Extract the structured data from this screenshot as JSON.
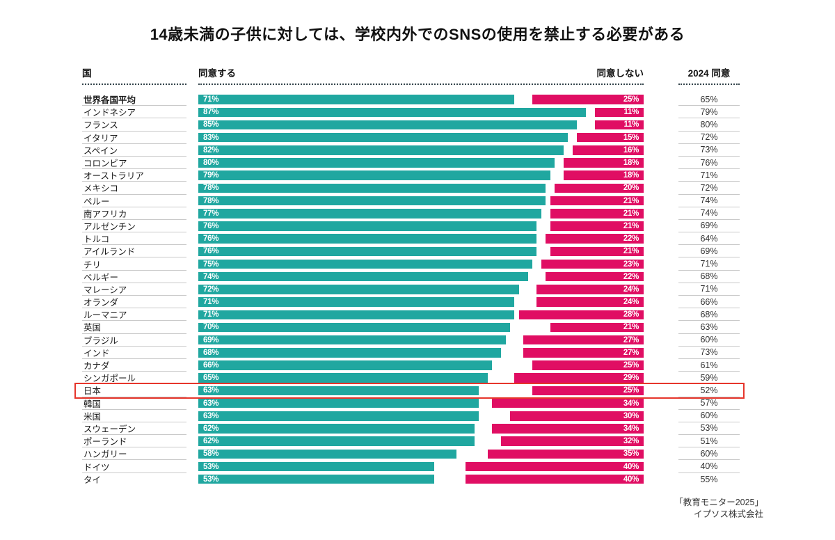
{
  "title": "14歳未満の子供に対しては、学校内外でのSNSの使用を禁止する必要がある",
  "header": {
    "country": "国",
    "agree": "同意する",
    "disagree": "同意しない",
    "agree_2024": "2024 同意"
  },
  "source": {
    "line1": "「教育モニター2025」",
    "line2": "イプソス株式会社"
  },
  "colors": {
    "agree_bar": "#20a7a0",
    "disagree_bar": "#e00e63",
    "highlight_box": "#e6352b",
    "row_line": "#c9c9c9",
    "header_dotted": "#34444b"
  },
  "chart_data": {
    "type": "bar",
    "subtype": "horizontal-diverging-with-table-column",
    "title": "14歳未満の子供に対しては、学校内外でのSNSの使用を禁止する必要がある",
    "value_format": "percent",
    "axis_range": [
      0,
      100
    ],
    "grid": false,
    "legend_position": "column-headers",
    "categories": [
      "世界各国平均",
      "インドネシア",
      "フランス",
      "イタリア",
      "スペイン",
      "コロンビア",
      "オーストラリア",
      "メキシコ",
      "ペルー",
      "南アフリカ",
      "アルゼンチン",
      "トルコ",
      "アイルランド",
      "チリ",
      "ベルギー",
      "マレーシア",
      "オランダ",
      "ルーマニア",
      "英国",
      "ブラジル",
      "インド",
      "カナダ",
      "シンガポール",
      "日本",
      "韓国",
      "米国",
      "スウェーデン",
      "ポーランド",
      "ハンガリー",
      "ドイツ",
      "タイ"
    ],
    "series": [
      {
        "name": "同意する",
        "values": [
          71,
          87,
          85,
          83,
          82,
          80,
          79,
          78,
          78,
          77,
          76,
          76,
          76,
          75,
          74,
          72,
          71,
          71,
          70,
          69,
          68,
          66,
          65,
          63,
          63,
          63,
          62,
          62,
          58,
          53,
          53
        ]
      },
      {
        "name": "同意しない",
        "values": [
          25,
          11,
          11,
          15,
          16,
          18,
          18,
          20,
          21,
          21,
          21,
          22,
          21,
          23,
          22,
          24,
          24,
          28,
          21,
          27,
          27,
          25,
          29,
          25,
          34,
          30,
          34,
          32,
          35,
          40,
          40
        ]
      },
      {
        "name": "2024 同意",
        "values": [
          65,
          79,
          80,
          72,
          73,
          76,
          71,
          72,
          74,
          74,
          69,
          64,
          69,
          71,
          68,
          71,
          66,
          68,
          63,
          60,
          73,
          61,
          59,
          52,
          57,
          60,
          53,
          51,
          60,
          40,
          55
        ]
      }
    ],
    "highlighted_category": "日本",
    "bold_category": "世界各国平均",
    "source": "「教育モニター2025」イプソス株式会社"
  }
}
